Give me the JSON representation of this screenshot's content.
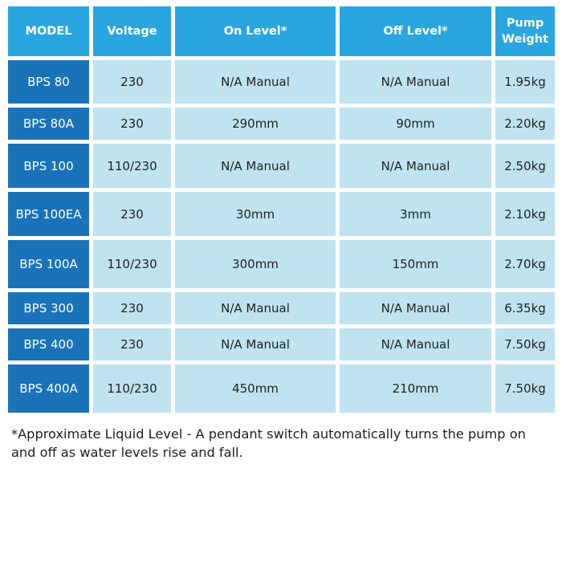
{
  "table": {
    "headers": [
      "MODEL",
      "Voltage",
      "On Level*",
      "Off Level*",
      "Pump\nWeight"
    ],
    "rows": [
      [
        "BPS 80",
        "230",
        "N/A Manual",
        "N/A Manual",
        "1.95kg"
      ],
      [
        "BPS 80A",
        "230",
        "290mm",
        "90mm",
        "2.20kg"
      ],
      [
        "BPS 100",
        "110/230",
        "N/A Manual",
        "N/A Manual",
        "2.50kg"
      ],
      [
        "BPS 100EA",
        "230",
        "30mm",
        "3mm",
        "2.10kg"
      ],
      [
        "BPS 100A",
        "110/230",
        "300mm",
        "150mm",
        "2.70kg"
      ],
      [
        "BPS 300",
        "230",
        "N/A Manual",
        "N/A Manual",
        "6.35kg"
      ],
      [
        "BPS 400",
        "230",
        "N/A Manual",
        "N/A Manual",
        "7.50kg"
      ],
      [
        "BPS 400A",
        "110/230",
        "450mm",
        "210mm",
        "7.50kg"
      ]
    ]
  },
  "footnote": "*Approximate Liquid Level - A pendant switch automatically turns the pump on and off as water levels rise and fall.",
  "colors": {
    "header_bg": "#29a6e0",
    "model_bg": "#1a73b8",
    "cell_bg": "#bfe3ef"
  }
}
